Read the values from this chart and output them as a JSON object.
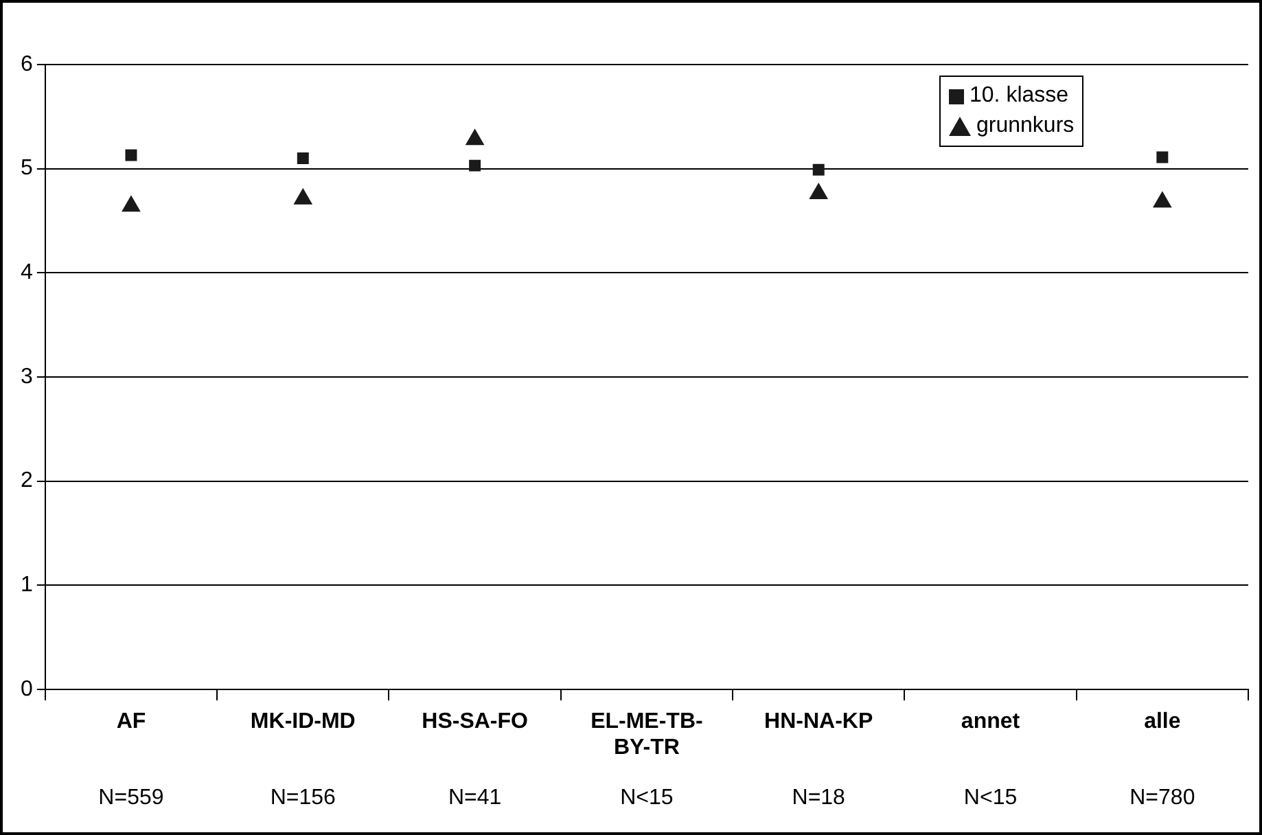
{
  "chart_data": {
    "type": "scatter",
    "categories": [
      "AF",
      "MK-ID-MD",
      "HS-SA-FO",
      "EL-ME-TB-BY-TR",
      "HN-NA-KP",
      "annet",
      "alle"
    ],
    "series": [
      {
        "name": "10. klasse",
        "color": "#1a1a1a",
        "marker": "square",
        "values": [
          5.13,
          5.1,
          5.03,
          null,
          4.99,
          null,
          5.11
        ]
      },
      {
        "name": "grunnkurs",
        "color": "#1a1a1a",
        "marker": "triangle",
        "values": [
          4.64,
          4.71,
          5.28,
          null,
          4.76,
          null,
          4.68
        ]
      }
    ],
    "ylim": [
      0,
      6
    ],
    "yticks": [
      0,
      1,
      2,
      3,
      4,
      5,
      6
    ],
    "grid": "y",
    "legend": "top right",
    "annotations": [
      "N=559",
      "N=156",
      "N=41",
      "N<15",
      "N=18",
      "N<15",
      "N=780"
    ]
  }
}
